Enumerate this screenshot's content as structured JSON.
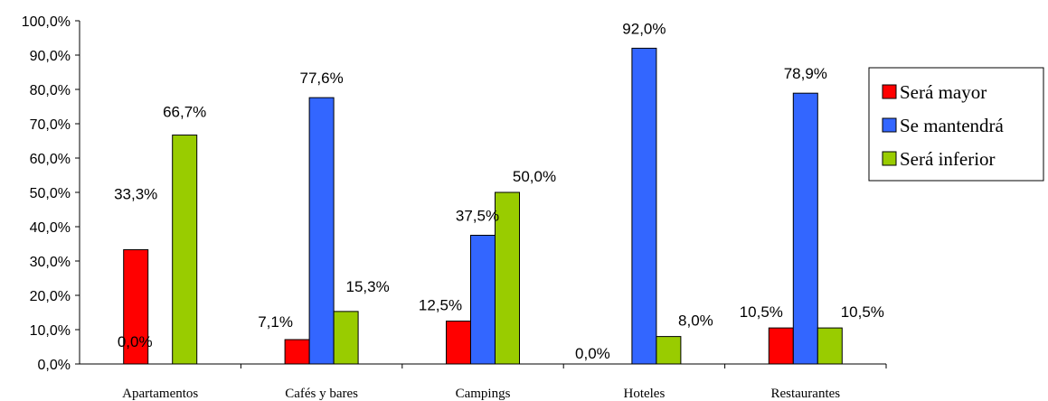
{
  "chart_data": {
    "type": "bar",
    "categories": [
      "Apartamentos",
      "Cafés y bares",
      "Campings",
      "Hoteles",
      "Restaurantes"
    ],
    "series": [
      {
        "name": "Será mayor",
        "color": "#FF0000",
        "values": [
          33.3,
          7.1,
          12.5,
          0.0,
          10.5
        ],
        "labels": [
          "33,3%",
          "7,1%",
          "12,5%",
          "0,0%",
          "10,5%"
        ]
      },
      {
        "name": "Se mantendrá",
        "color": "#3366FF",
        "values": [
          0.0,
          77.6,
          37.5,
          92.0,
          78.9
        ],
        "labels": [
          "0,0%",
          "77,6%",
          "37,5%",
          "92,0%",
          "78,9%"
        ]
      },
      {
        "name": "Será inferior",
        "color": "#99CC00",
        "values": [
          66.7,
          15.3,
          50.0,
          8.0,
          10.5
        ],
        "labels": [
          "66,7%",
          "15,3%",
          "50,0%",
          "8,0%",
          "10,5%"
        ]
      }
    ],
    "y_ticks": [
      "0,0%",
      "10,0%",
      "20,0%",
      "30,0%",
      "40,0%",
      "50,0%",
      "60,0%",
      "70,0%",
      "80,0%",
      "90,0%",
      "100,0%"
    ],
    "ylim": [
      0,
      100
    ],
    "grid": false,
    "legend_position": "right"
  }
}
